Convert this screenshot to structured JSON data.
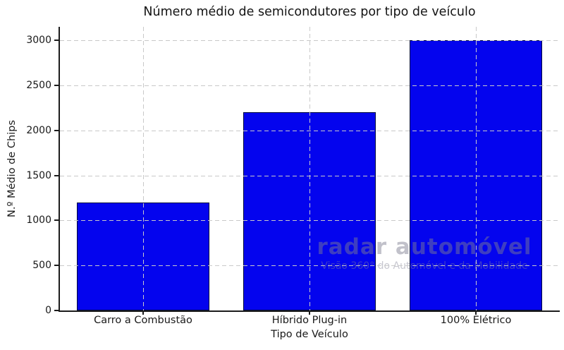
{
  "chart_data": {
    "type": "bar",
    "title": "Número médio de semicondutores por tipo de veículo",
    "xlabel": "Tipo de Veículo",
    "ylabel": "N.º Médio de Chips",
    "categories": [
      "Carro a Combustão",
      "Híbrido Plug-in",
      "100% Elétrico"
    ],
    "values": [
      1200,
      2200,
      3000
    ],
    "yticks": [
      0,
      500,
      1000,
      1500,
      2000,
      2500,
      3000
    ],
    "ylim": [
      0,
      3150
    ],
    "bar_color": "#0404ee",
    "bar_edge_color": "#000a3c",
    "grid": "dashed both axes",
    "grid_color": "#c9c9c9",
    "legend_position": "none"
  },
  "watermark": {
    "title": "radar automóvel",
    "subtitle": "Visão 360° do Automóvel e da Mobilidade"
  }
}
